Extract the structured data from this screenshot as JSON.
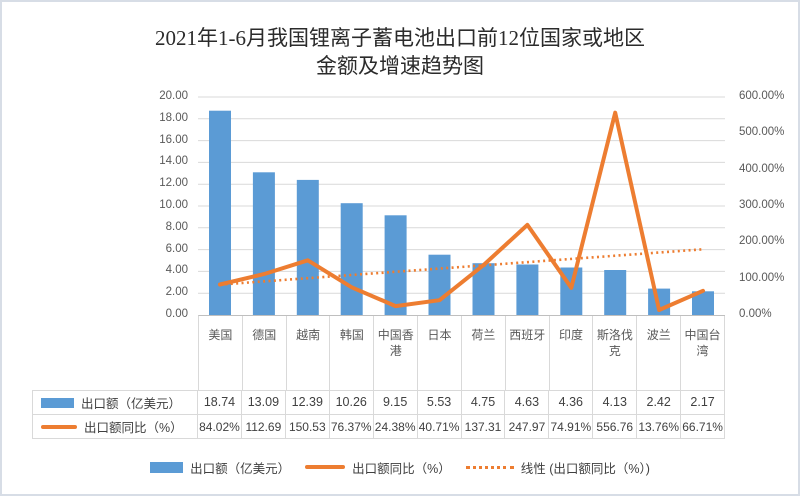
{
  "title": {
    "line1": "2021年1-6月我国锂离子蓄电池出口前12位国家或地区",
    "line2": "金额及增速趋势图"
  },
  "colors": {
    "bar": "#5B9BD5",
    "line": "#ED7D31",
    "grid": "#D9D9D9",
    "axis_line": "#BFBFBF",
    "axis_text": "#595959",
    "table_text": "#404040"
  },
  "chart_data": {
    "type": "combo_bar_line",
    "categories": [
      "美国",
      "德国",
      "越南",
      "韩国",
      "中国香港",
      "日本",
      "荷兰",
      "西班牙",
      "印度",
      "斯洛伐克",
      "波兰",
      "中国台湾"
    ],
    "series": [
      {
        "name": "出口额（亿美元）",
        "type": "bar",
        "axis": "left",
        "values": [
          18.74,
          13.09,
          12.39,
          10.26,
          9.15,
          5.53,
          4.75,
          4.63,
          4.36,
          4.13,
          2.42,
          2.17
        ]
      },
      {
        "name": "出口额同比（%）",
        "type": "line",
        "axis": "right",
        "values": [
          84.02,
          112.69,
          150.53,
          76.37,
          24.38,
          40.71,
          137.31,
          247.97,
          74.91,
          556.76,
          13.76,
          66.71
        ]
      },
      {
        "name": "线性 (出口额同比（%）)",
        "type": "linear_trendline",
        "of_series": "出口额同比（%）"
      }
    ],
    "left_axis": {
      "min": 0,
      "max": 20,
      "step": 2,
      "tick_labels_top_down": [
        "20.00",
        "18.00",
        "16.00",
        "14.00",
        "12.00",
        "10.00",
        "8.00",
        "6.00",
        "4.00",
        "2.00",
        "0.00"
      ]
    },
    "right_axis": {
      "min": 0,
      "max": 600,
      "step": 100,
      "tick_labels_top_down": [
        "600.00%",
        "500.00%",
        "400.00%",
        "300.00%",
        "200.00%",
        "100.00%",
        "0.00%"
      ]
    },
    "grid": "horizontal",
    "legend_position": "bottom"
  },
  "table": {
    "rows": [
      {
        "label": "出口额（亿美元）",
        "key": "bar",
        "cells": [
          "18.74",
          "13.09",
          "12.39",
          "10.26",
          "9.15",
          "5.53",
          "4.75",
          "4.63",
          "4.36",
          "4.13",
          "2.42",
          "2.17"
        ]
      },
      {
        "label": "出口额同比（%）",
        "key": "line",
        "cells": [
          "84.02%",
          "112.69",
          "150.53",
          "76.37%",
          "24.38%",
          "40.71%",
          "137.31",
          "247.97",
          "74.91%",
          "556.76",
          "13.76%",
          "66.71%"
        ]
      }
    ]
  },
  "legend": {
    "items": [
      {
        "label": "出口额（亿美元）",
        "key": "bar"
      },
      {
        "label": "出口额同比（%）",
        "key": "line"
      },
      {
        "label": "线性 (出口额同比（%）)",
        "key": "trend"
      }
    ]
  }
}
